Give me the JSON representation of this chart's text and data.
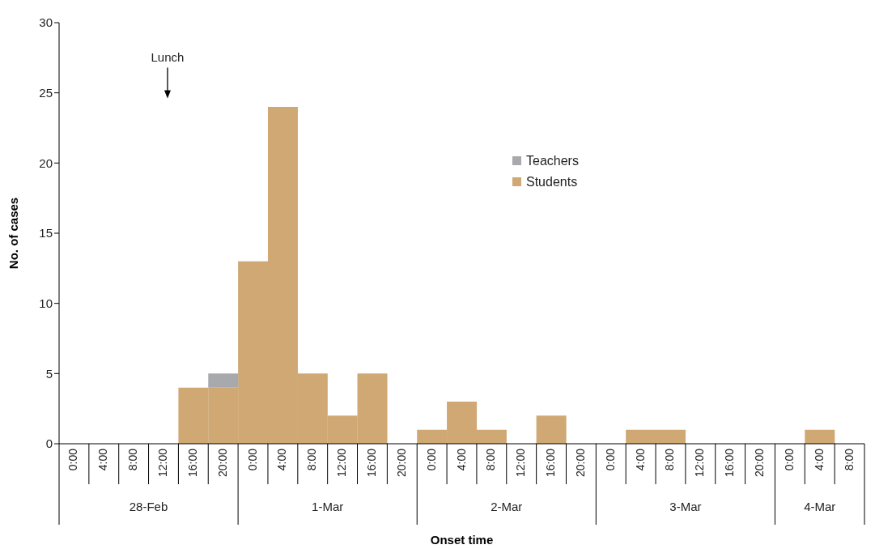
{
  "chart_data": {
    "type": "bar",
    "stacked": true,
    "xlabel": "Onset time",
    "ylabel": "No. of cases",
    "categories": [
      "0:00",
      "4:00",
      "8:00",
      "12:00",
      "16:00",
      "20:00",
      "0:00",
      "4:00",
      "8:00",
      "12:00",
      "16:00",
      "20:00",
      "0:00",
      "4:00",
      "8:00",
      "12:00",
      "16:00",
      "20:00",
      "0:00",
      "4:00",
      "8:00",
      "12:00",
      "16:00",
      "20:00",
      "0:00",
      "4:00",
      "8:00"
    ],
    "series": [
      {
        "name": "Students",
        "color": "#cfa874",
        "values": [
          0,
          0,
          0,
          0,
          4,
          4,
          13,
          24,
          5,
          2,
          5,
          0,
          1,
          3,
          1,
          0,
          2,
          0,
          0,
          1,
          1,
          0,
          0,
          0,
          0,
          1,
          0
        ]
      },
      {
        "name": "Teachers",
        "color": "#a7a9ac",
        "values": [
          0,
          0,
          0,
          0,
          0,
          1,
          0,
          0,
          0,
          0,
          0,
          0,
          0,
          0,
          0,
          0,
          0,
          0,
          0,
          0,
          0,
          0,
          0,
          0,
          0,
          0,
          0
        ]
      }
    ],
    "ylim": [
      0,
      30
    ],
    "yticks": [
      0,
      5,
      10,
      15,
      20,
      25,
      30
    ],
    "legend": "top right",
    "grid": false,
    "annotations": [
      "28-Feb",
      "1-Mar",
      "2-Mar",
      "3-Mar",
      "4-Mar",
      "Lunch"
    ]
  }
}
